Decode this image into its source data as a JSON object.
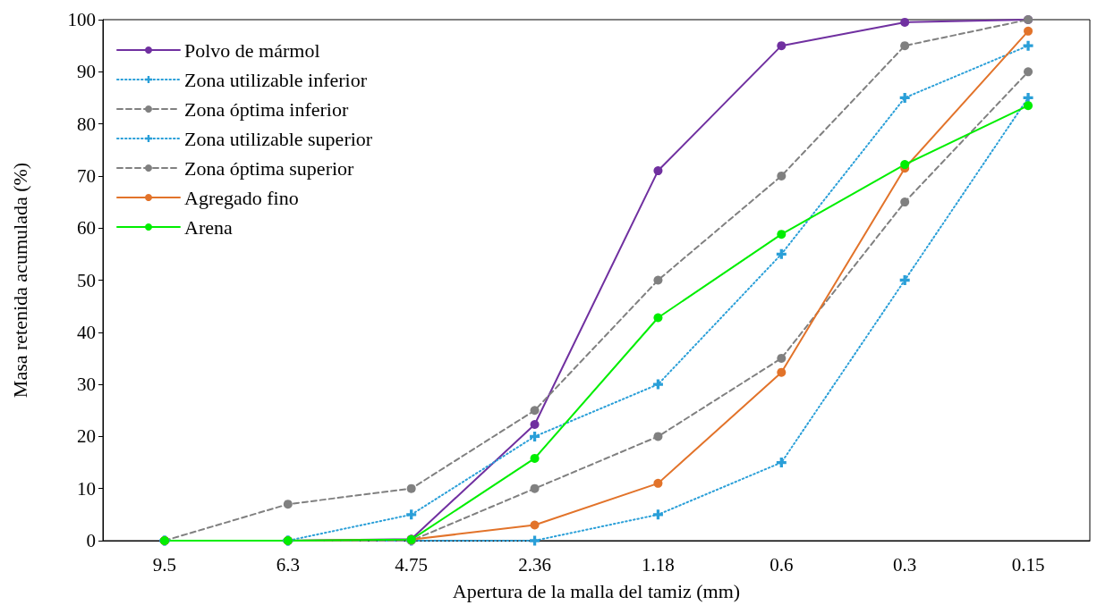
{
  "chart_data": {
    "type": "line",
    "xlabel": "Apertura de la malla del tamiz (mm)",
    "ylabel": "Masa retenida acumulada (%)",
    "categories": [
      "9.5",
      "6.3",
      "4.75",
      "2.36",
      "1.18",
      "0.6",
      "0.3",
      "0.15"
    ],
    "series": [
      {
        "name": "Polvo de mármol",
        "color": "#7030a0",
        "line_style": "solid",
        "marker": "circle",
        "values": [
          0,
          0,
          0.3,
          22.3,
          71,
          95,
          99.5,
          100
        ]
      },
      {
        "name": "Zona utilizable inferior",
        "color": "#2a9fd8",
        "line_style": "dotted",
        "marker": "cross",
        "values": [
          0,
          0,
          0,
          0,
          5,
          15,
          50,
          85
        ]
      },
      {
        "name": "Zona óptima inferior",
        "color": "#808080",
        "line_style": "dashed",
        "marker": "circle",
        "values": [
          0,
          0,
          0,
          10,
          20,
          35,
          65,
          90
        ]
      },
      {
        "name": "Zona utilizable superior",
        "color": "#2a9fd8",
        "line_style": "dotted",
        "marker": "cross",
        "values": [
          0,
          0,
          5,
          20,
          30,
          55,
          85,
          95
        ]
      },
      {
        "name": "Zona óptima superior",
        "color": "#808080",
        "line_style": "dashed",
        "marker": "circle",
        "values": [
          0,
          7,
          10,
          25,
          50,
          70,
          95,
          100
        ]
      },
      {
        "name": "Agregado fino",
        "color": "#e2732a",
        "line_style": "solid",
        "marker": "circle",
        "values": [
          0,
          0,
          0.2,
          3,
          11,
          32.3,
          71.5,
          97.8
        ]
      },
      {
        "name": "Arena",
        "color": "#00ee00",
        "line_style": "solid",
        "marker": "circle",
        "values": [
          0,
          0,
          0.2,
          15.8,
          42.8,
          58.8,
          72.2,
          83.5
        ]
      }
    ],
    "ylim": [
      0,
      100
    ],
    "yticks": [
      0,
      10,
      20,
      30,
      40,
      50,
      60,
      70,
      80,
      90,
      100
    ],
    "grid": false,
    "legend": "top left"
  }
}
